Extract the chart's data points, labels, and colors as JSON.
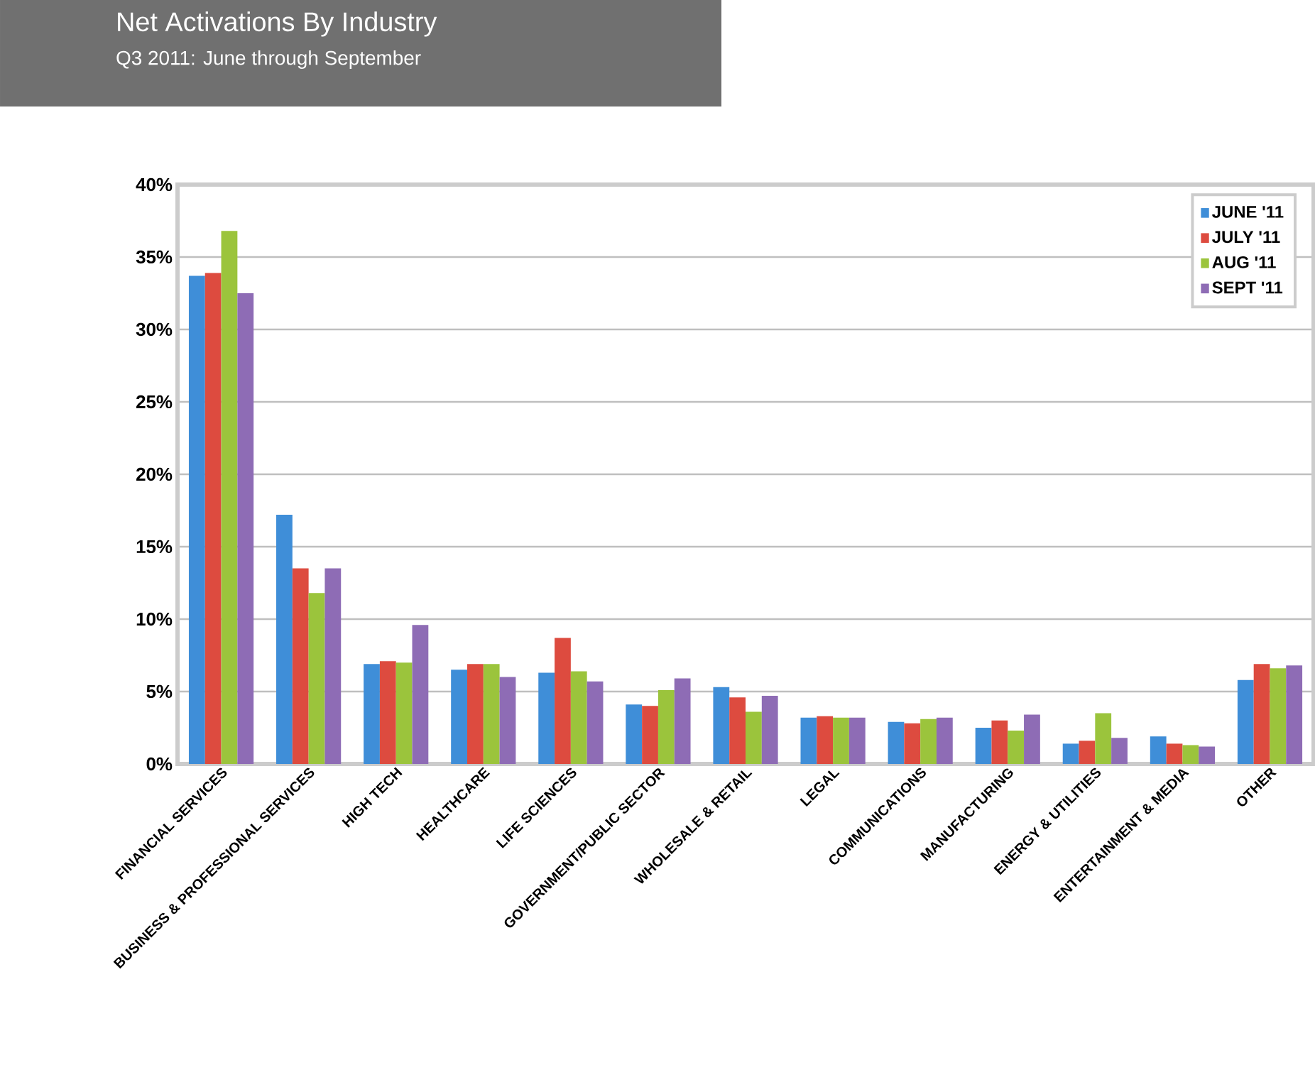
{
  "chart_data": {
    "type": "bar",
    "title": "Net Activations By Industry",
    "subtitle": "Q3 2011: June through September",
    "categories": [
      "FINANCIAL SERVICES",
      "BUSINESS & PROFESSIONAL SERVICES",
      "HIGH TECH",
      "HEALTHCARE",
      "LIFE SCIENCES",
      "GOVERNMENT/PUBLIC SECTOR",
      "WHOLESALE & RETAIL",
      "LEGAL",
      "COMMUNICATIONS",
      "MANUFACTURING",
      "ENERGY & UTILITIES",
      "ENTERTAINMENT & MEDIA",
      "OTHER"
    ],
    "series": [
      {
        "name": "JUNE '11",
        "color": "#3f8ed8",
        "values": [
          33.7,
          17.2,
          6.9,
          6.5,
          6.3,
          4.1,
          5.3,
          3.2,
          2.9,
          2.5,
          1.4,
          1.9,
          5.8
        ]
      },
      {
        "name": "JULY '11",
        "color": "#dd4b3f",
        "values": [
          33.9,
          13.5,
          7.1,
          6.9,
          8.7,
          4.0,
          4.6,
          3.3,
          2.8,
          3.0,
          1.6,
          1.4,
          6.9
        ]
      },
      {
        "name": "AUG '11",
        "color": "#9bc43c",
        "values": [
          36.8,
          11.8,
          7.0,
          6.9,
          6.4,
          5.1,
          3.6,
          3.2,
          3.1,
          2.3,
          3.5,
          1.3,
          6.6
        ]
      },
      {
        "name": "SEPT '11",
        "color": "#8e6cb5",
        "values": [
          32.5,
          13.5,
          9.6,
          6.0,
          5.7,
          5.9,
          4.7,
          3.2,
          3.2,
          3.4,
          1.8,
          1.2,
          6.8
        ]
      }
    ],
    "ylim": [
      0,
      40
    ],
    "yticks": [
      {
        "value": 0,
        "label": "0%"
      },
      {
        "value": 5,
        "label": "5%"
      },
      {
        "value": 10,
        "label": "10%"
      },
      {
        "value": 15,
        "label": "15%"
      },
      {
        "value": 20,
        "label": "20%"
      },
      {
        "value": 25,
        "label": "25%"
      },
      {
        "value": 30,
        "label": "30%"
      },
      {
        "value": 35,
        "label": "35%"
      },
      {
        "value": 40,
        "label": "40%"
      }
    ],
    "grid": "y",
    "legend": "top right"
  }
}
